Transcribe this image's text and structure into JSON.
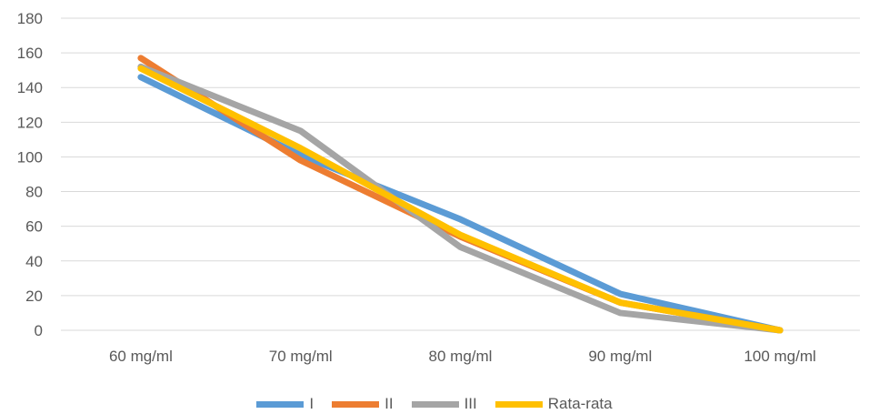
{
  "chart_data": {
    "type": "line",
    "categories": [
      "60 mg/ml",
      "70 mg/ml",
      "80 mg/ml",
      "90 mg/ml",
      "100 mg/ml"
    ],
    "ylim": [
      0,
      180
    ],
    "yticks": [
      0,
      20,
      40,
      60,
      80,
      100,
      120,
      140,
      160,
      180
    ],
    "grid": true,
    "legend_position": "bottom",
    "series": [
      {
        "name": "I",
        "color": "#5B9BD5",
        "values": [
          146,
          101,
          64,
          21,
          0
        ]
      },
      {
        "name": "II",
        "color": "#ED7D31",
        "values": [
          157,
          98,
          54,
          16,
          0
        ]
      },
      {
        "name": "III",
        "color": "#A5A5A5",
        "values": [
          152,
          115,
          48,
          10,
          0
        ]
      },
      {
        "name": "Rata-rata",
        "color": "#FFC000",
        "values": [
          151,
          105,
          55,
          16,
          0
        ]
      }
    ]
  }
}
